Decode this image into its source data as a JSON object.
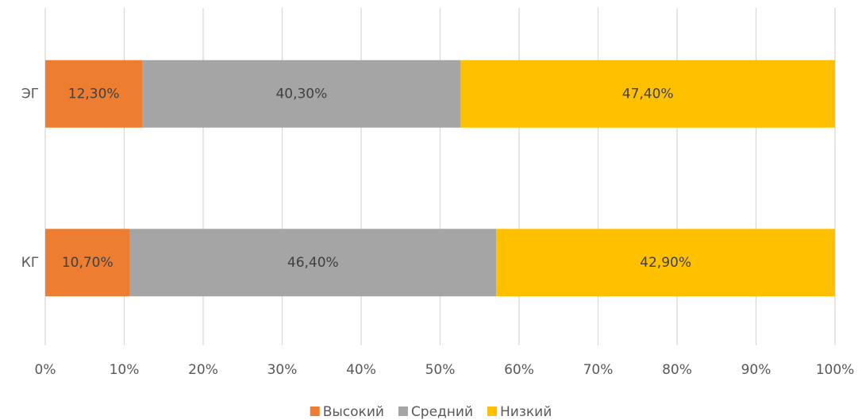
{
  "chart_data": {
    "type": "bar",
    "orientation": "horizontal",
    "stacked": true,
    "categories": [
      "ЭГ",
      "КГ"
    ],
    "series": [
      {
        "name": "Высокий",
        "color": "#ed7d31",
        "values": [
          12.3,
          10.7
        ],
        "value_labels": [
          "12,30%",
          "10,70%"
        ]
      },
      {
        "name": "Средний",
        "color": "#a5a5a5",
        "values": [
          40.3,
          46.4
        ],
        "value_labels": [
          "40,30%",
          "46,40%"
        ]
      },
      {
        "name": "Низкий",
        "color": "#ffc000",
        "values": [
          47.4,
          42.9
        ],
        "value_labels": [
          "47,40%",
          "42,90%"
        ]
      }
    ],
    "xlim": [
      0,
      100
    ],
    "xticks": [
      {
        "value": 0,
        "label": "0%"
      },
      {
        "value": 10,
        "label": "10%"
      },
      {
        "value": 20,
        "label": "20%"
      },
      {
        "value": 30,
        "label": "30%"
      },
      {
        "value": 40,
        "label": "40%"
      },
      {
        "value": 50,
        "label": "50%"
      },
      {
        "value": 60,
        "label": "60%"
      },
      {
        "value": 70,
        "label": "70%"
      },
      {
        "value": 80,
        "label": "80%"
      },
      {
        "value": 90,
        "label": "90%"
      },
      {
        "value": 100,
        "label": "100%"
      }
    ],
    "grid": true,
    "legend": "bottom"
  }
}
